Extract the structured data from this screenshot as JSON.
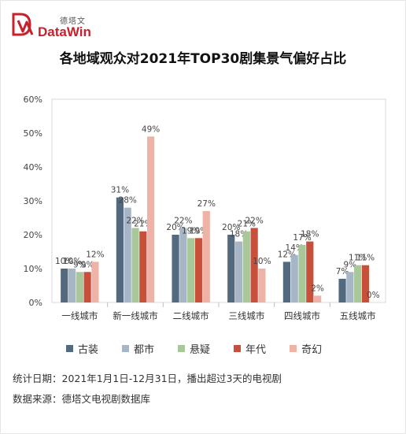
{
  "brand": {
    "name_cn": "德塔文",
    "name_en": "DataWin",
    "color": "#c8202c"
  },
  "title": "各地域观众对2021年TOP30剧集景气偏好占比",
  "notes": {
    "date_range": "统计日期：2021年1月1日-12月31日，播出超过3天的电视剧",
    "source": "数据来源：德塔文电视剧数据库"
  },
  "chart_data": {
    "type": "bar",
    "title": "各地域观众对2021年TOP30剧集景气偏好占比",
    "categories": [
      "一线城市",
      "新一线城市",
      "二线城市",
      "三线城市",
      "四线城市",
      "五线城市"
    ],
    "series": [
      {
        "name": "古装",
        "color": "#536a7e",
        "values": [
          10,
          31,
          20,
          20,
          12,
          7
        ]
      },
      {
        "name": "都市",
        "color": "#a6b6c6",
        "values": [
          10,
          28,
          22,
          18,
          14,
          9
        ]
      },
      {
        "name": "悬疑",
        "color": "#a9c89a",
        "values": [
          9,
          22,
          19,
          21,
          17,
          11
        ]
      },
      {
        "name": "年代",
        "color": "#c8503a",
        "values": [
          9,
          21,
          19,
          22,
          18,
          11
        ]
      },
      {
        "name": "奇幻",
        "color": "#efb2a6",
        "values": [
          12,
          49,
          27,
          10,
          2,
          0
        ]
      }
    ],
    "data_labels": [
      [
        "10%",
        "10%",
        "9%",
        "9%",
        "12%"
      ],
      [
        "31%",
        "28%",
        "22%",
        "21%",
        "49%"
      ],
      [
        "20%",
        "22%",
        "19%",
        "19%",
        "27%"
      ],
      [
        "20%",
        "18%",
        "21%",
        "22%",
        "10%"
      ],
      [
        "12%",
        "14%",
        "17%",
        "18%",
        "2%"
      ],
      [
        "7%",
        "9%",
        "11%",
        "11%",
        "0%"
      ]
    ],
    "y_ticks": [
      "0%",
      "10%",
      "20%",
      "30%",
      "40%",
      "50%",
      "60%"
    ],
    "ylim": [
      0,
      60
    ],
    "xlabel": "",
    "ylabel": "",
    "grid": false,
    "legend": "bottom"
  }
}
